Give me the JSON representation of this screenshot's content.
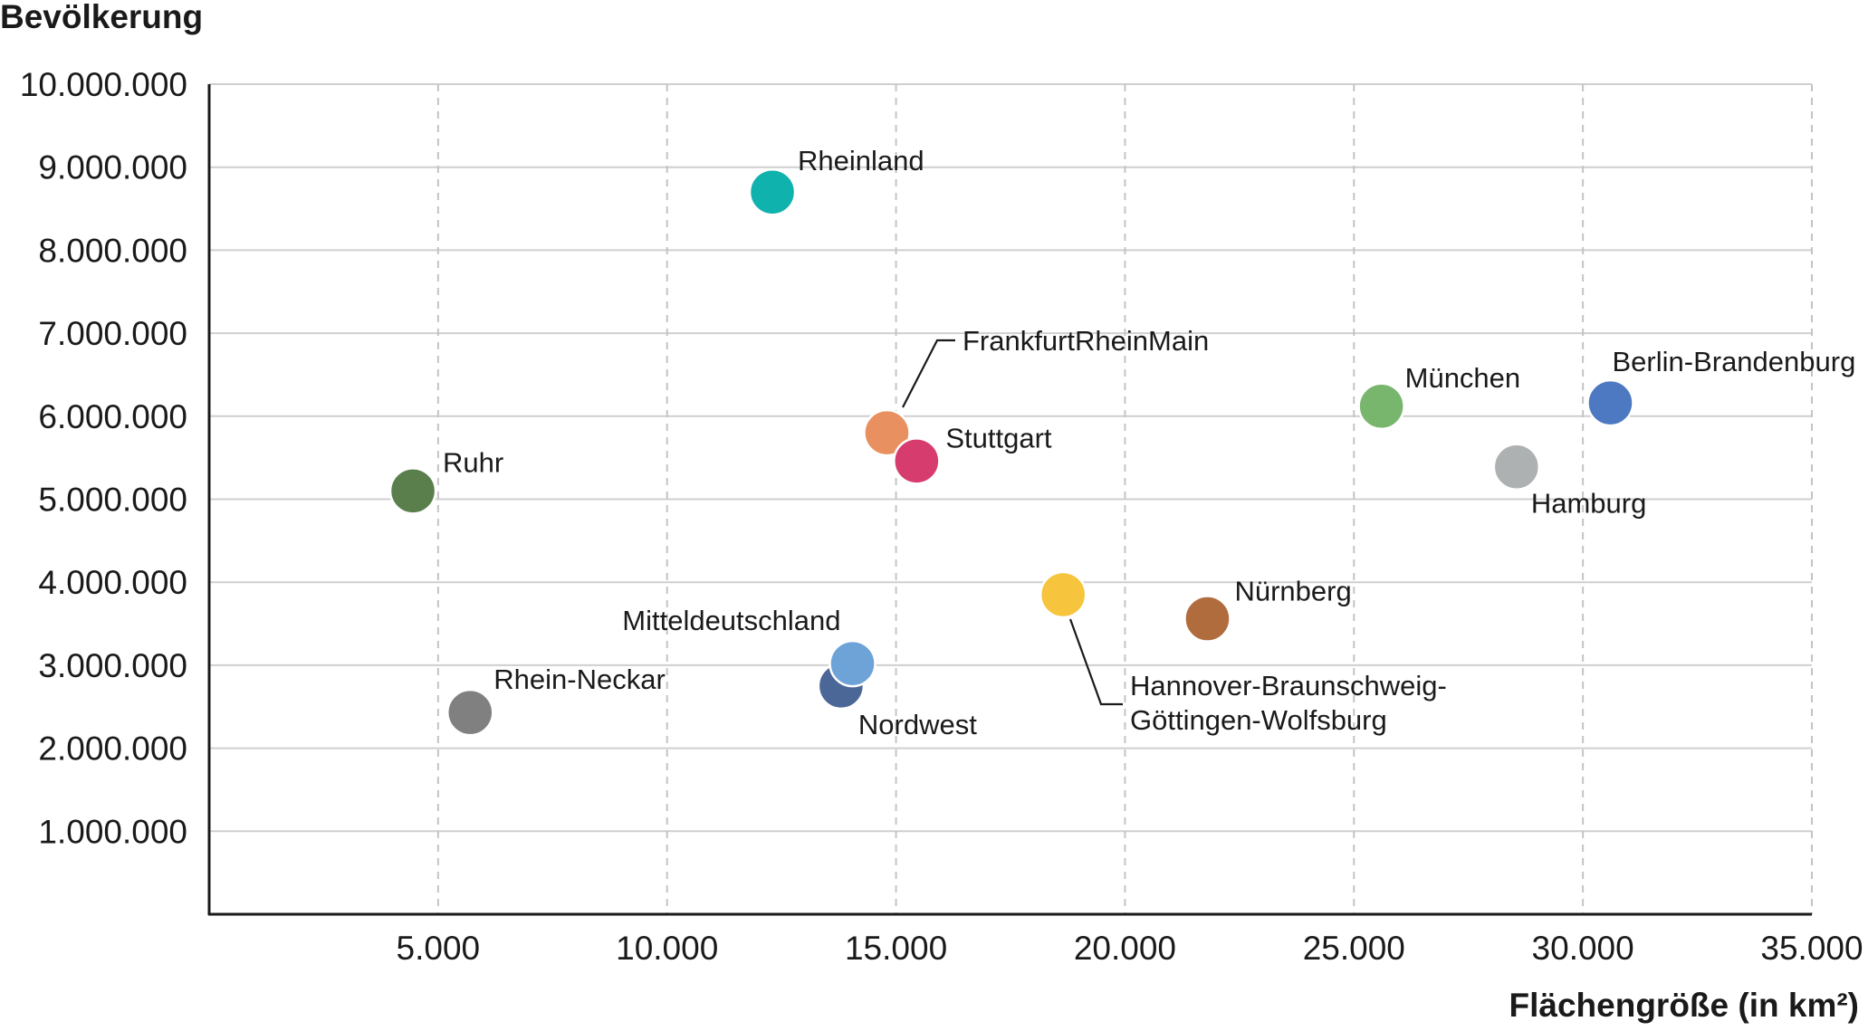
{
  "chart_data": {
    "type": "scatter",
    "title": "",
    "xlabel": "Flächengröße (in km²)",
    "ylabel": "Bevölkerung",
    "xlim": [
      0,
      35000
    ],
    "ylim": [
      0,
      10000000
    ],
    "grid": {
      "x": "dashed",
      "y": "solid"
    },
    "legend": "none (direct point labels)",
    "x_ticks": [
      {
        "value": 5000,
        "label": "5.000"
      },
      {
        "value": 10000,
        "label": "10.000"
      },
      {
        "value": 15000,
        "label": "15.000"
      },
      {
        "value": 20000,
        "label": "20.000"
      },
      {
        "value": 25000,
        "label": "25.000"
      },
      {
        "value": 30000,
        "label": "30.000"
      },
      {
        "value": 35000,
        "label": "35.000"
      }
    ],
    "y_ticks": [
      {
        "value": 1000000,
        "label": "1.000.000"
      },
      {
        "value": 2000000,
        "label": "2.000.000"
      },
      {
        "value": 3000000,
        "label": "3.000.000"
      },
      {
        "value": 4000000,
        "label": "4.000.000"
      },
      {
        "value": 5000000,
        "label": "5.000.000"
      },
      {
        "value": 6000000,
        "label": "6.000.000"
      },
      {
        "value": 7000000,
        "label": "7.000.000"
      },
      {
        "value": 8000000,
        "label": "8.000.000"
      },
      {
        "value": 9000000,
        "label": "9.000.000"
      },
      {
        "value": 10000000,
        "label": "10.000.000"
      }
    ],
    "points": [
      {
        "label": [
          "Ruhr"
        ],
        "x": 4450,
        "y": 5100000,
        "color": "#5a7f4c"
      },
      {
        "label": [
          "Rhein-Neckar"
        ],
        "x": 5700,
        "y": 2430000,
        "color": "#808080"
      },
      {
        "label": [
          "Rheinland"
        ],
        "x": 12300,
        "y": 8700000,
        "color": "#10b2ad"
      },
      {
        "label": [
          "Nordwest"
        ],
        "x": 13800,
        "y": 2750000,
        "color": "#4b6798"
      },
      {
        "label": [
          "Mitteldeutschland"
        ],
        "x": 14050,
        "y": 3020000,
        "color": "#6ea3d8"
      },
      {
        "label": [
          "FrankfurtRheinMain"
        ],
        "x": 14800,
        "y": 5800000,
        "color": "#e99060"
      },
      {
        "label": [
          "Stuttgart"
        ],
        "x": 15450,
        "y": 5460000,
        "color": "#d73c6e"
      },
      {
        "label": [
          "Hannover-Braunschweig-",
          "Göttingen-Wolfsburg"
        ],
        "x": 18650,
        "y": 3850000,
        "color": "#f6c43d"
      },
      {
        "label": [
          "Nürnberg"
        ],
        "x": 21800,
        "y": 3560000,
        "color": "#b06c3d"
      },
      {
        "label": [
          "München"
        ],
        "x": 25600,
        "y": 6120000,
        "color": "#78b66e"
      },
      {
        "label": [
          "Hamburg"
        ],
        "x": 28550,
        "y": 5390000,
        "color": "#aeb1b2"
      },
      {
        "label": [
          "Berlin-Brandenburg"
        ],
        "x": 30600,
        "y": 6160000,
        "color": "#4c79c1"
      }
    ]
  }
}
